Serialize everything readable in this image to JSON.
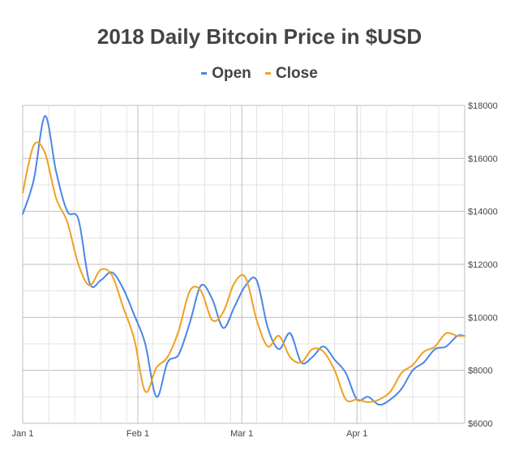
{
  "chart_data": {
    "type": "line",
    "title": "2018 Daily Bitcoin Price in $USD",
    "xlabel": "",
    "ylabel": "",
    "ylim": [
      6000,
      18000
    ],
    "xlim": [
      "2018-01-01",
      "2018-04-30"
    ],
    "y_ticks": [
      "$18000",
      "$16000",
      "$14000",
      "$12000",
      "$10000",
      "$8000",
      "$6000"
    ],
    "x_ticks": [
      {
        "label": "Jan 1",
        "date": "2018-01-01"
      },
      {
        "label": "Feb 1",
        "date": "2018-02-01"
      },
      {
        "label": "Mar 1",
        "date": "2018-03-01"
      },
      {
        "label": "Apr 1",
        "date": "2018-04-01"
      }
    ],
    "grid": true,
    "legend_position": "top",
    "series": [
      {
        "name": "Open",
        "color": "#4a86e8",
        "x": [
          "2018-01-01",
          "2018-01-04",
          "2018-01-07",
          "2018-01-10",
          "2018-01-13",
          "2018-01-16",
          "2018-01-19",
          "2018-01-22",
          "2018-01-25",
          "2018-01-28",
          "2018-01-31",
          "2018-02-03",
          "2018-02-06",
          "2018-02-09",
          "2018-02-12",
          "2018-02-15",
          "2018-02-18",
          "2018-02-21",
          "2018-02-24",
          "2018-02-27",
          "2018-03-02",
          "2018-03-05",
          "2018-03-08",
          "2018-03-11",
          "2018-03-14",
          "2018-03-17",
          "2018-03-20",
          "2018-03-23",
          "2018-03-26",
          "2018-03-29",
          "2018-04-01",
          "2018-04-04",
          "2018-04-07",
          "2018-04-10",
          "2018-04-13",
          "2018-04-16",
          "2018-04-19",
          "2018-04-22",
          "2018-04-25",
          "2018-04-28",
          "2018-04-30"
        ],
        "values": [
          13900,
          15200,
          17600,
          15500,
          14000,
          13700,
          11300,
          11400,
          11700,
          11100,
          10100,
          9000,
          7000,
          8300,
          8600,
          9800,
          11200,
          10700,
          9600,
          10400,
          11200,
          11400,
          9600,
          8800,
          9400,
          8300,
          8500,
          8900,
          8400,
          7900,
          6900,
          7000,
          6700,
          6900,
          7300,
          8000,
          8300,
          8800,
          8900,
          9300,
          9300
        ]
      },
      {
        "name": "Close",
        "color": "#f0a020",
        "x": [
          "2018-01-01",
          "2018-01-04",
          "2018-01-07",
          "2018-01-10",
          "2018-01-13",
          "2018-01-16",
          "2018-01-19",
          "2018-01-22",
          "2018-01-25",
          "2018-01-28",
          "2018-01-31",
          "2018-02-03",
          "2018-02-06",
          "2018-02-09",
          "2018-02-12",
          "2018-02-15",
          "2018-02-18",
          "2018-02-21",
          "2018-02-24",
          "2018-02-27",
          "2018-03-02",
          "2018-03-05",
          "2018-03-08",
          "2018-03-11",
          "2018-03-14",
          "2018-03-17",
          "2018-03-20",
          "2018-03-23",
          "2018-03-26",
          "2018-03-29",
          "2018-04-01",
          "2018-04-04",
          "2018-04-07",
          "2018-04-10",
          "2018-04-13",
          "2018-04-16",
          "2018-04-19",
          "2018-04-22",
          "2018-04-25",
          "2018-04-28",
          "2018-04-30"
        ],
        "values": [
          14700,
          16500,
          16200,
          14500,
          13600,
          12000,
          11200,
          11800,
          11600,
          10400,
          9200,
          7200,
          8100,
          8500,
          9500,
          11000,
          11000,
          9900,
          10200,
          11300,
          11500,
          9900,
          8900,
          9300,
          8500,
          8300,
          8800,
          8700,
          8000,
          6900,
          6900,
          6800,
          6900,
          7200,
          7900,
          8200,
          8700,
          8900,
          9400,
          9300,
          9300
        ]
      }
    ]
  }
}
